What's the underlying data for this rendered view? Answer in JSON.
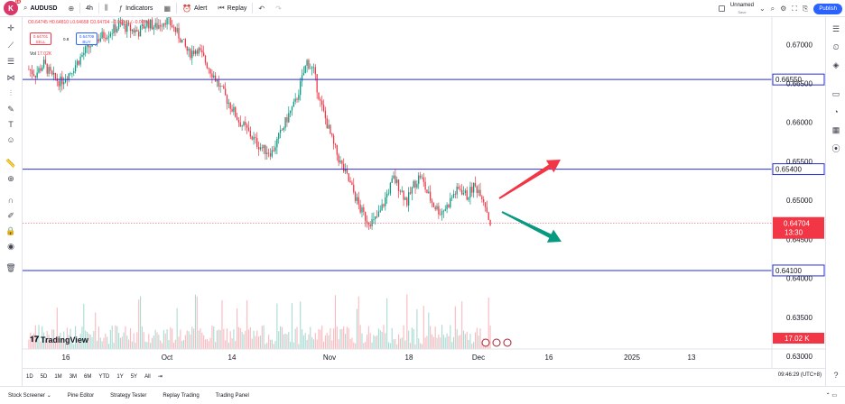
{
  "topbar": {
    "logo_letter": "K",
    "logo_badge": "10",
    "symbol": "AUDUSD",
    "interval": "4h",
    "indicators_label": "Indicators",
    "alert_label": "Alert",
    "replay_label": "Replay",
    "layout_name": "Unnamed",
    "save_label": "Save",
    "publish_label": "Publish"
  },
  "legend": {
    "ohlc_text": "O0.64745 H0.64810 L0.64658 C0.64704 −0.00041 (−0.06%)",
    "sell_price": "0.64701",
    "sell_label": "SELL",
    "spread": "0.8",
    "buy_price": "0.64709",
    "buy_label": "BUY",
    "vol_label": "Vol",
    "vol_value": "17.02K"
  },
  "tradingview_label": "TradingView",
  "price_axis": {
    "ticks": [
      "0.67000",
      "0.66500",
      "0.66000",
      "0.65500",
      "0.65000",
      "0.64500",
      "0.64000",
      "0.63500",
      "0.63000"
    ],
    "level_labels": [
      "0.66550",
      "0.65400",
      "0.64100"
    ],
    "current_price": "0.64704",
    "countdown": "13:30",
    "volume_label": "17.02 K"
  },
  "time_axis": {
    "labels": [
      "16",
      "Oct",
      "14",
      "Nov",
      "18",
      "Dec",
      "16",
      "2025",
      "13"
    ]
  },
  "ranges": [
    "1D",
    "5D",
    "1M",
    "3M",
    "6M",
    "YTD",
    "1Y",
    "5Y",
    "All"
  ],
  "timestamp": "09:46:29 (UTC+8)",
  "bottom_tabs": [
    "Stock Screener",
    "Pine Editor",
    "Strategy Tester",
    "Replay Trading",
    "Trading Panel"
  ],
  "chart_data": {
    "type": "candlestick",
    "symbol": "AUDUSD",
    "interval": "4h",
    "ylim": [
      0.6285,
      0.6735
    ],
    "horizontal_levels": [
      0.6655,
      0.654,
      0.641
    ],
    "current_price": 0.64704,
    "path": [
      [
        0,
        0.6668
      ],
      [
        4,
        0.6662
      ],
      [
        9,
        0.6675
      ],
      [
        14,
        0.6658
      ],
      [
        19,
        0.6652
      ],
      [
        25,
        0.6665
      ],
      [
        30,
        0.668
      ],
      [
        35,
        0.6695
      ],
      [
        40,
        0.6705
      ],
      [
        45,
        0.6712
      ],
      [
        50,
        0.6718
      ],
      [
        55,
        0.6725
      ],
      [
        60,
        0.672
      ],
      [
        66,
        0.6716
      ],
      [
        71,
        0.6728
      ],
      [
        76,
        0.6722
      ],
      [
        82,
        0.6732
      ],
      [
        86,
        0.6724
      ],
      [
        91,
        0.6708
      ],
      [
        96,
        0.6688
      ],
      [
        101,
        0.6695
      ],
      [
        106,
        0.6678
      ],
      [
        111,
        0.666
      ],
      [
        116,
        0.664
      ],
      [
        121,
        0.6622
      ],
      [
        126,
        0.6602
      ],
      [
        131,
        0.659
      ],
      [
        136,
        0.6575
      ],
      [
        141,
        0.6565
      ],
      [
        146,
        0.6562
      ],
      [
        151,
        0.6585
      ],
      [
        156,
        0.661
      ],
      [
        160,
        0.6625
      ],
      [
        163,
        0.6648
      ],
      [
        167,
        0.6678
      ],
      [
        171,
        0.6665
      ],
      [
        175,
        0.6625
      ],
      [
        179,
        0.6598
      ],
      [
        183,
        0.657
      ],
      [
        187,
        0.6548
      ],
      [
        191,
        0.653
      ],
      [
        195,
        0.651
      ],
      [
        199,
        0.6488
      ],
      [
        203,
        0.6475
      ],
      [
        207,
        0.6472
      ],
      [
        211,
        0.6485
      ],
      [
        215,
        0.6508
      ],
      [
        219,
        0.6528
      ],
      [
        223,
        0.6515
      ],
      [
        227,
        0.6498
      ],
      [
        231,
        0.652
      ],
      [
        235,
        0.6532
      ],
      [
        239,
        0.651
      ],
      [
        243,
        0.6494
      ],
      [
        247,
        0.6485
      ],
      [
        251,
        0.6492
      ],
      [
        255,
        0.6508
      ],
      [
        259,
        0.6515
      ],
      [
        263,
        0.6505
      ],
      [
        267,
        0.6518
      ],
      [
        271,
        0.6512
      ],
      [
        274,
        0.6495
      ],
      [
        277,
        0.647
      ]
    ],
    "arrows": [
      {
        "direction": "up",
        "color": "#f23645"
      },
      {
        "direction": "down",
        "color": "#089981"
      }
    ],
    "up_color": "#089981",
    "down_color": "#f23645",
    "level_color": "#2a2ed8"
  }
}
